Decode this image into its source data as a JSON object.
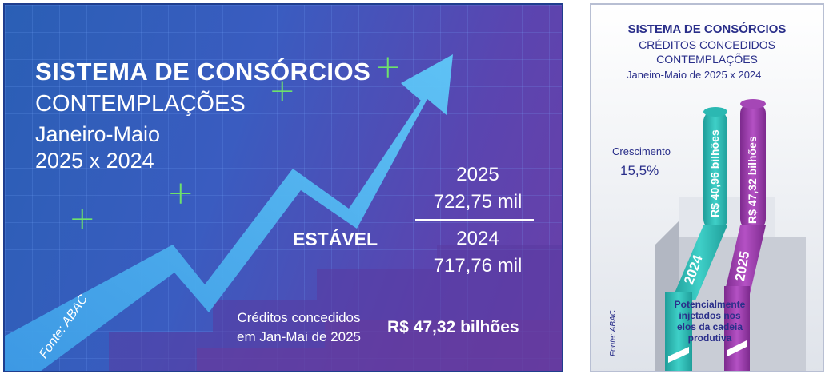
{
  "left_panel": {
    "title": "SISTEMA DE CONSÓRCIOS",
    "subtitle": "CONTEMPLAÇÕES",
    "period_line1": "Janeiro-Maio",
    "period_line2": "2025 x 2024",
    "year_2025": "2025",
    "value_2025": "722,75 mil",
    "year_2024": "2024",
    "value_2024": "717,76 mil",
    "trend": "ESTÁVEL",
    "credits_line1": "Créditos concedidos",
    "credits_line2": "em Jan-Mai de 2025",
    "credits_value": "R$ 47,32 bilhões",
    "source": "Fonte: ABAC",
    "colors": {
      "arrow": "#4fb6f0",
      "plus": "#6ee26b",
      "background": "#3a5cc0"
    }
  },
  "right_panel": {
    "title": "SISTEMA DE CONSÓRCIOS",
    "subtitle1": "CRÉDITOS CONCEDIDOS",
    "subtitle2": "CONTEMPLAÇÕES",
    "period": "Janeiro-Maio de 2025 x 2024",
    "growth_label": "Crescimento",
    "growth_value": "15,5%",
    "pipe_2024_value": "R$ 40,96 bilhões",
    "pipe_2025_value": "R$ 47,32 bilhões",
    "year_2024": "2024",
    "year_2025": "2025",
    "potential_line1": "Potencialmente",
    "potential_line2": "injetados nos",
    "potential_line3": "elos da cadeia",
    "potential_line4": "produtiva",
    "source": "Fonte: ABAC",
    "colors": {
      "pipe_2024": "#27b5b0",
      "pipe_2025": "#9a3aa8",
      "text": "#2a2f8a"
    }
  }
}
